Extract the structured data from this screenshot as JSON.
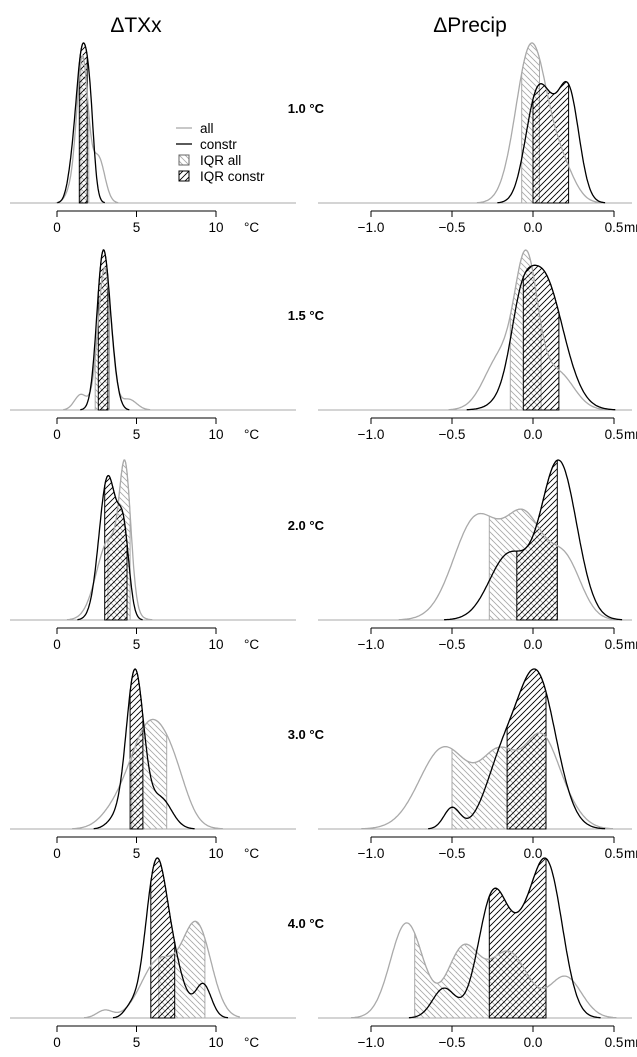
{
  "columns": [
    {
      "title": "ΔTXx",
      "unit": "°C",
      "xlim": [
        0,
        10
      ],
      "ticks": [
        {
          "v": 0,
          "label": "0"
        },
        {
          "v": 5,
          "label": "5"
        },
        {
          "v": 10,
          "label": "10"
        }
      ]
    },
    {
      "title": "ΔPrecip",
      "unit": "mm/day",
      "xlim": [
        -1.0,
        0.5
      ],
      "ticks": [
        {
          "v": -1.0,
          "label": "−1.0"
        },
        {
          "v": -0.5,
          "label": "−0.5"
        },
        {
          "v": 0.0,
          "label": "0.0"
        },
        {
          "v": 0.5,
          "label": "0.5"
        }
      ]
    }
  ],
  "legend": {
    "items": [
      {
        "key": "all",
        "label": "all",
        "kind": "line",
        "color": "#aaaaaa"
      },
      {
        "key": "constr",
        "label": "constr",
        "kind": "line",
        "color": "#000000"
      },
      {
        "key": "iqr_all",
        "label": "IQR all",
        "kind": "hatch-back",
        "color": "#aaaaaa"
      },
      {
        "key": "iqr_constr",
        "label": "IQR constr",
        "kind": "hatch-fwd",
        "color": "#000000"
      }
    ]
  },
  "chart_data": {
    "type": "area",
    "description_of_series": [
      "all",
      "constr"
    ],
    "colors": {
      "all": "#aaaaaa",
      "constr": "#000000"
    },
    "panels": [
      {
        "level": "1.0 °C",
        "txx": {
          "all": {
            "peaks": [
              [
                1.6,
                0.95,
                0.35
              ],
              [
                2.6,
                0.3,
                0.4
              ],
              [
                0.9,
                0.08,
                0.35
              ]
            ],
            "iqr": [
              1.5,
              2.0
            ]
          },
          "constr": {
            "peaks": [
              [
                1.6,
                1.0,
                0.4
              ],
              [
                0.9,
                0.12,
                0.3
              ],
              [
                2.1,
                0.3,
                0.25
              ]
            ],
            "iqr": [
              1.4,
              1.9
            ]
          }
        },
        "precip": {
          "all": {
            "peaks": [
              [
                -0.01,
                0.98,
                0.095
              ],
              [
                0.18,
                0.2,
                0.08
              ]
            ],
            "iqr": [
              -0.07,
              0.04
            ]
          },
          "constr": {
            "peaks": [
              [
                0.02,
                0.62,
                0.07
              ],
              [
                0.22,
                0.68,
                0.065
              ],
              [
                0.11,
                0.25,
                0.06
              ]
            ],
            "iqr": [
              0.0,
              0.22
            ]
          }
        }
      },
      {
        "level": "1.5 °C",
        "txx": {
          "all": {
            "peaks": [
              [
                3.0,
                0.92,
                0.42
              ],
              [
                1.5,
                0.1,
                0.4
              ],
              [
                4.5,
                0.07,
                0.5
              ]
            ],
            "iqr": [
              2.4,
              3.3
            ]
          },
          "constr": {
            "peaks": [
              [
                2.9,
                1.0,
                0.4
              ],
              [
                3.5,
                0.15,
                0.35
              ]
            ],
            "iqr": [
              2.6,
              3.2
            ]
          }
        },
        "precip": {
          "all": {
            "peaks": [
              [
                -0.04,
                0.92,
                0.07
              ],
              [
                -0.2,
                0.35,
                0.1
              ],
              [
                0.15,
                0.25,
                0.1
              ]
            ],
            "iqr": [
              -0.14,
              0.05
            ]
          },
          "constr": {
            "peaks": [
              [
                0.05,
                0.92,
                0.13
              ],
              [
                -0.08,
                0.25,
                0.06
              ]
            ],
            "iqr": [
              -0.06,
              0.16
            ]
          }
        }
      },
      {
        "level": "2.0 °C",
        "txx": {
          "all": {
            "peaks": [
              [
                4.3,
                0.68,
                0.35
              ],
              [
                3.3,
                0.45,
                0.8
              ]
            ],
            "iqr": [
              3.2,
              4.6
            ]
          },
          "constr": {
            "peaks": [
              [
                3.2,
                0.8,
                0.55
              ],
              [
                4.2,
                0.42,
                0.35
              ]
            ],
            "iqr": [
              3.0,
              4.4
            ]
          }
        },
        "precip": {
          "all": {
            "peaks": [
              [
                -0.35,
                0.5,
                0.14
              ],
              [
                -0.05,
                0.48,
                0.12
              ],
              [
                0.2,
                0.28,
                0.1
              ]
            ],
            "iqr": [
              -0.27,
              0.15
            ]
          },
          "constr": {
            "peaks": [
              [
                0.16,
                0.78,
                0.11
              ],
              [
                -0.15,
                0.32,
                0.12
              ]
            ],
            "iqr": [
              -0.1,
              0.15
            ]
          }
        }
      },
      {
        "level": "3.0 °C",
        "txx": {
          "all": {
            "peaks": [
              [
                5.9,
                0.62,
                1.3
              ],
              [
                3.5,
                0.06,
                0.9
              ],
              [
                7.5,
                0.12,
                0.8
              ]
            ],
            "iqr": [
              4.7,
              6.9
            ]
          },
          "constr": {
            "peaks": [
              [
                4.9,
                0.92,
                0.55
              ],
              [
                6.5,
                0.18,
                0.7
              ],
              [
                3.6,
                0.05,
                0.5
              ]
            ],
            "iqr": [
              4.6,
              5.4
            ]
          }
        },
        "precip": {
          "all": {
            "peaks": [
              [
                -0.55,
                0.5,
                0.15
              ],
              [
                -0.2,
                0.45,
                0.12
              ],
              [
                0.05,
                0.5,
                0.1
              ],
              [
                0.2,
                0.12,
                0.1
              ]
            ],
            "iqr": [
              -0.5,
              0.08
            ]
          },
          "constr": {
            "peaks": [
              [
                0.02,
                0.95,
                0.12
              ],
              [
                -0.2,
                0.35,
                0.1
              ],
              [
                -0.5,
                0.13,
                0.05
              ]
            ],
            "iqr": [
              -0.16,
              0.08
            ]
          }
        }
      },
      {
        "level": "4.0 °C",
        "txx": {
          "all": {
            "peaks": [
              [
                8.8,
                0.6,
                0.9
              ],
              [
                6.4,
                0.38,
                1.1
              ],
              [
                3.0,
                0.05,
                0.5
              ]
            ],
            "iqr": [
              6.4,
              9.3
            ]
          },
          "constr": {
            "peaks": [
              [
                6.2,
                0.95,
                0.65
              ],
              [
                7.3,
                0.33,
                0.7
              ],
              [
                9.2,
                0.22,
                0.5
              ],
              [
                4.6,
                0.06,
                0.4
              ]
            ],
            "iqr": [
              5.9,
              7.4
            ]
          }
        },
        "precip": {
          "all": {
            "peaks": [
              [
                -0.78,
                0.58,
                0.1
              ],
              [
                -0.43,
                0.42,
                0.1
              ],
              [
                -0.15,
                0.4,
                0.12
              ],
              [
                0.2,
                0.25,
                0.1
              ]
            ],
            "iqr": [
              -0.73,
              0.08
            ]
          },
          "constr": {
            "peaks": [
              [
                -0.25,
                0.72,
                0.09
              ],
              [
                0.1,
                0.8,
                0.09
              ],
              [
                -0.05,
                0.45,
                0.1
              ],
              [
                -0.55,
                0.18,
                0.07
              ]
            ],
            "iqr": [
              -0.27,
              0.08
            ]
          }
        }
      }
    ]
  }
}
